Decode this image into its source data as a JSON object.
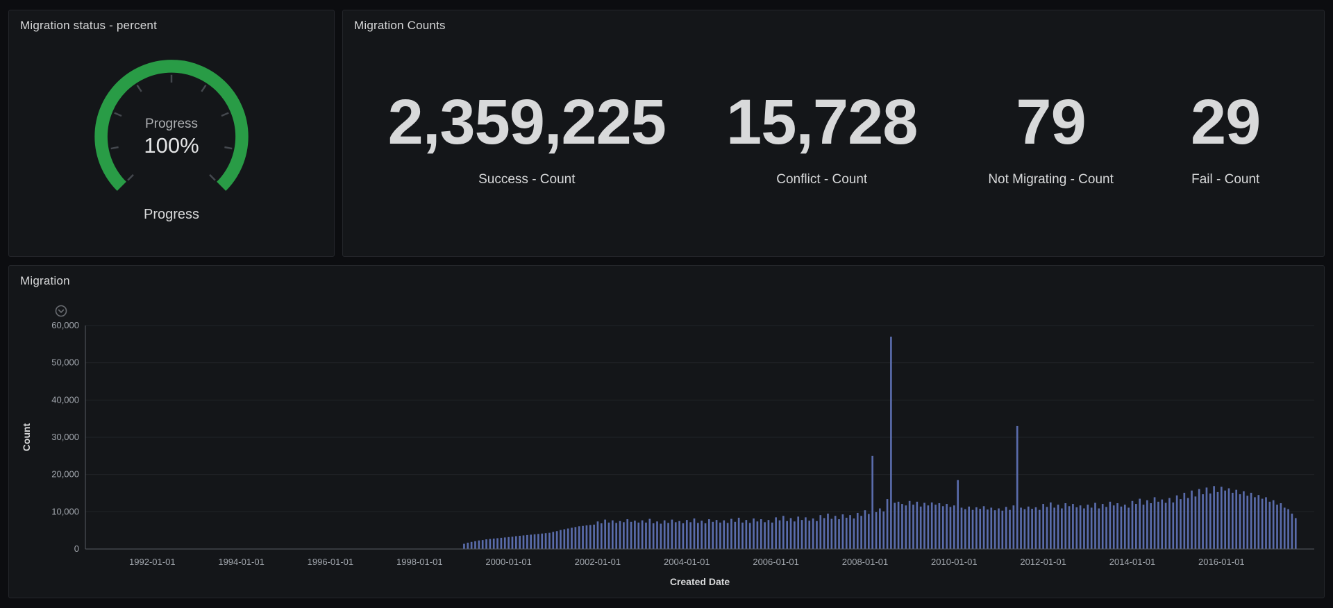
{
  "panels": {
    "gauge": {
      "title": "Migration status - percent",
      "metric_label": "Progress",
      "value": "100%",
      "footer_label": "Progress",
      "gauge_color": "#299c46"
    },
    "counts": {
      "title": "Migration Counts",
      "stats": [
        {
          "value": "2,359,225",
          "label": "Success - Count"
        },
        {
          "value": "15,728",
          "label": "Conflict - Count"
        },
        {
          "value": "79",
          "label": "Not Migrating - Count"
        },
        {
          "value": "29",
          "label": "Fail - Count"
        }
      ]
    },
    "migration": {
      "title": "Migration"
    }
  },
  "chart_data": {
    "type": "bar",
    "title": "Migration",
    "xlabel": "Created Date",
    "ylabel": "Count",
    "x_unit": "month",
    "grid": true,
    "legend": "none",
    "bar_color": "#5a6cab",
    "ylim": [
      0,
      60000
    ],
    "y_ticks": [
      0,
      10000,
      20000,
      30000,
      40000,
      50000,
      60000
    ],
    "x_ticks": [
      "1992-01-01",
      "1994-01-01",
      "1996-01-01",
      "1998-01-01",
      "2000-01-01",
      "2002-01-01",
      "2004-01-01",
      "2006-01-01",
      "2008-01-01",
      "2010-01-01",
      "2012-01-01",
      "2014-01-01",
      "2016-01-01"
    ],
    "x_range": [
      "1990-07",
      "2018-02"
    ],
    "start_month": "1999-01",
    "values": [
      1400,
      1700,
      1900,
      2100,
      2300,
      2400,
      2600,
      2700,
      2800,
      2900,
      3000,
      3100,
      3200,
      3300,
      3450,
      3550,
      3650,
      3750,
      3850,
      3950,
      4050,
      4150,
      4250,
      4350,
      4600,
      4800,
      5100,
      5300,
      5500,
      5700,
      5900,
      6100,
      6200,
      6350,
      6450,
      6550,
      7400,
      6900,
      7900,
      7100,
      7700,
      7000,
      7500,
      7200,
      8000,
      7300,
      7600,
      7100,
      7700,
      7100,
      8100,
      6900,
      7400,
      6800,
      7700,
      7000,
      7900,
      7200,
      7500,
      6900,
      7800,
      7200,
      8200,
      7000,
      7600,
      6900,
      8000,
      7300,
      7800,
      7100,
      7700,
      7000,
      8100,
      7300,
      8400,
      7100,
      7800,
      7000,
      8200,
      7400,
      8000,
      7200,
      7800,
      7100,
      8500,
      7700,
      8900,
      7500,
      8300,
      7400,
      8700,
      7800,
      8500,
      7600,
      8200,
      7500,
      9100,
      8300,
      9500,
      8100,
      8900,
      8000,
      9300,
      8400,
      9100,
      8200,
      9700,
      8900,
      10400,
      9400,
      25000,
      9900,
      10900,
      10100,
      13400,
      57000,
      12400,
      12700,
      12100,
      11700,
      12900,
      11900,
      12700,
      11400,
      12400,
      11700,
      12500,
      11900,
      12300,
      11500,
      12100,
      11300,
      11700,
      18500,
      11100,
      10700,
      11400,
      10500,
      11200,
      10800,
      11500,
      10600,
      11100,
      10400,
      10900,
      10300,
      11300,
      10500,
      11700,
      33000,
      11100,
      10700,
      11400,
      10800,
      11200,
      10500,
      12100,
      11300,
      12500,
      11100,
      11900,
      10900,
      12300,
      11500,
      12100,
      11200,
      11700,
      10900,
      11900,
      11100,
      12400,
      10900,
      12100,
      11300,
      12700,
      11700,
      12300,
      11400,
      11900,
      11100,
      12900,
      12100,
      13500,
      11900,
      13100,
      12300,
      13900,
      12700,
      13300,
      12400,
      13700,
      12500,
      14400,
      13400,
      15100,
      13700,
      15700,
      14100,
      16100,
      14700,
      16500,
      14900,
      16900,
      15300,
      16700,
      15700,
      16300,
      15100,
      15900,
      14700,
      15500,
      14300,
      15100,
      13900,
      14500,
      13500,
      13900,
      12700,
      13100,
      11900,
      12300,
      11100,
      10700,
      9500,
      8300
    ]
  }
}
